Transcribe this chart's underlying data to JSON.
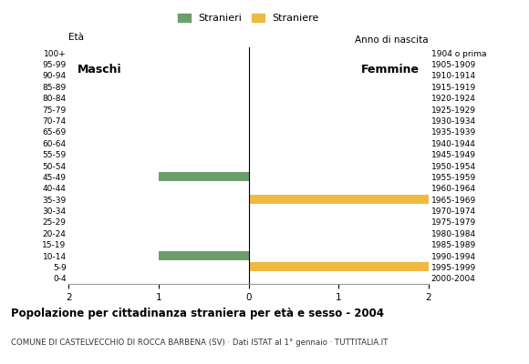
{
  "age_groups": [
    "100+",
    "95-99",
    "90-94",
    "85-89",
    "80-84",
    "75-79",
    "70-74",
    "65-69",
    "60-64",
    "55-59",
    "50-54",
    "45-49",
    "40-44",
    "35-39",
    "30-34",
    "25-29",
    "20-24",
    "15-19",
    "10-14",
    "5-9",
    "0-4"
  ],
  "birth_years": [
    "1904 o prima",
    "1905-1909",
    "1910-1914",
    "1915-1919",
    "1920-1924",
    "1925-1929",
    "1930-1934",
    "1935-1939",
    "1940-1944",
    "1945-1949",
    "1950-1954",
    "1955-1959",
    "1960-1964",
    "1965-1969",
    "1970-1974",
    "1975-1979",
    "1980-1984",
    "1985-1989",
    "1990-1994",
    "1995-1999",
    "2000-2004"
  ],
  "males": [
    0,
    0,
    0,
    0,
    0,
    0,
    0,
    0,
    0,
    0,
    0,
    1,
    0,
    0,
    0,
    0,
    0,
    0,
    1,
    0,
    0
  ],
  "females": [
    0,
    0,
    0,
    0,
    0,
    0,
    0,
    0,
    0,
    0,
    0,
    0,
    0,
    2,
    0,
    0,
    0,
    0,
    0,
    2,
    0
  ],
  "male_color": "#6b9e6b",
  "female_color": "#f0b942",
  "xlim": 2,
  "title": "Popolazione per cittadinanza straniera per età e sesso - 2004",
  "subtitle": "COMUNE DI CASTELVECCHIO DI ROCCA BARBENA (SV) · Dati ISTAT al 1° gennaio · TUTTITALIA.IT",
  "legend_male": "Stranieri",
  "legend_female": "Straniere",
  "label_eta": "Età",
  "label_anno": "Anno di nascita",
  "label_maschi": "Maschi",
  "label_femmine": "Femmine",
  "bg_color": "#ffffff"
}
